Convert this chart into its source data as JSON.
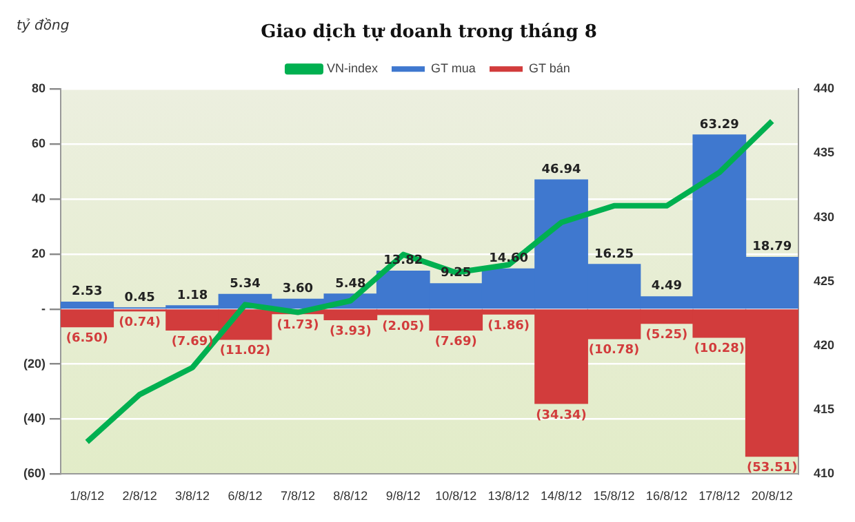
{
  "chart_data": {
    "type": "bar",
    "title": "Giao dịch tự doanh trong tháng 8",
    "ylabel": "tỷ đồng",
    "stacked": true,
    "categories": [
      "1/8/12",
      "2/8/12",
      "3/8/12",
      "6/8/12",
      "7/8/12",
      "8/8/12",
      "9/8/12",
      "10/8/12",
      "13/8/12",
      "14/8/12",
      "15/8/12",
      "16/8/12",
      "17/8/12",
      "20/8/12"
    ],
    "series": [
      {
        "name": "GT mua",
        "color": "#3f78cf",
        "values": [
          2.53,
          0.45,
          1.18,
          5.34,
          3.6,
          5.48,
          13.82,
          9.25,
          14.6,
          46.94,
          16.25,
          4.49,
          63.29,
          18.79
        ],
        "value_labels": [
          "2.53",
          "0.45",
          "1.18",
          "5.34",
          "3.60",
          "5.48",
          "13.82",
          "9.25",
          "14.60",
          "46.94",
          "16.25",
          "4.49",
          "63.29",
          "18.79"
        ]
      },
      {
        "name": "GT bán",
        "color": "#d23c3c",
        "values": [
          -6.5,
          -0.74,
          -7.69,
          -11.02,
          -1.73,
          -3.93,
          -2.05,
          -7.69,
          -1.86,
          -34.34,
          -10.78,
          -5.25,
          -10.28,
          -53.51
        ],
        "value_labels": [
          "(6.50)",
          "(0.74)",
          "(7.69)",
          "(11.02)",
          "(1.73)",
          "(3.93)",
          "(2.05)",
          "(7.69)",
          "(1.86)",
          "(34.34)",
          "(10.78)",
          "(5.25)",
          "(10.28)",
          "(53.51)"
        ]
      },
      {
        "name": "VN-index",
        "type": "line",
        "axis": "y2",
        "color": "#00b050",
        "values": [
          412.5,
          416.2,
          418.3,
          423.2,
          422.6,
          423.5,
          427.1,
          425.7,
          426.3,
          429.6,
          430.9,
          430.9,
          433.5,
          437.5
        ]
      }
    ],
    "ylim": [
      -60,
      80
    ],
    "yticks": [
      {
        "value": -60,
        "label": "(60)"
      },
      {
        "value": -40,
        "label": "(40)"
      },
      {
        "value": -20,
        "label": "(20)"
      },
      {
        "value": 0,
        "label": "-"
      },
      20,
      40,
      60,
      80
    ],
    "y2lim": [
      410,
      440
    ],
    "y2ticks": [
      410,
      415,
      420,
      425,
      430,
      435,
      440
    ],
    "grid": "y",
    "legend": "top",
    "marker": "none"
  }
}
